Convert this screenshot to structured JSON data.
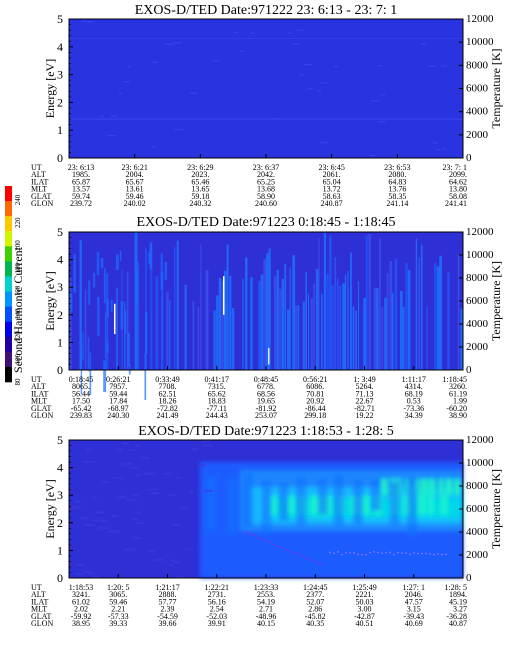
{
  "colorbar": {
    "label": "Second Harmonic Current",
    "ticks": [
      "240",
      "220",
      "200",
      "180",
      "160",
      "140",
      "120",
      "100",
      "80"
    ],
    "colors": [
      "#ff0000",
      "#ff6a00",
      "#ffc800",
      "#d2f500",
      "#3cd200",
      "#00b450",
      "#00d2d2",
      "#0096ff",
      "#0050ff",
      "#0000e6",
      "#2000a0",
      "#40107a",
      "#000000"
    ]
  },
  "chart_data": [
    {
      "type": "heatmap",
      "title": "EXOS-D/TED   Date:971222  23: 6:13 - 23: 7: 1",
      "ylabel": "Energy [eV]",
      "y2label": "Temperature [K]",
      "ylim": [
        0,
        5
      ],
      "y2lim": [
        0,
        12000
      ],
      "yticks": [
        "0",
        "1",
        "2",
        "3",
        "4",
        "5"
      ],
      "y2ticks": [
        "0",
        "2000",
        "4000",
        "6000",
        "8000",
        "10000",
        "12000"
      ],
      "ephemeris": [
        {
          "label": "UT",
          "values": [
            "23: 6:13",
            "23: 6:21",
            "23: 6:29",
            "23: 6:37",
            "23: 6:45",
            "23: 6:53",
            "23: 7: 1"
          ]
        },
        {
          "label": "ALT",
          "values": [
            "1985.",
            "2004.",
            "2023.",
            "2042.",
            "2061.",
            "2080.",
            "2099."
          ]
        },
        {
          "label": "ILAT",
          "values": [
            "65.87",
            "65.67",
            "65.46",
            "65.25",
            "65.04",
            "64.83",
            "64.62"
          ]
        },
        {
          "label": "MLT",
          "values": [
            "13.57",
            "13.61",
            "13.65",
            "13.68",
            "13.72",
            "13.76",
            "13.80"
          ]
        },
        {
          "label": "GLAT",
          "values": [
            "59.74",
            "59.46",
            "59.18",
            "58.90",
            "58.63",
            "58.35",
            "58.08"
          ]
        },
        {
          "label": "GLON",
          "values": [
            "239.72",
            "240.02",
            "240.32",
            "240.60",
            "240.87",
            "241.14",
            "241.41"
          ]
        }
      ]
    },
    {
      "type": "heatmap",
      "title": "EXOS-D/TED   Date:971223  0:18:45 - 1:18:45",
      "ylabel": "Energy [eV]",
      "y2label": "Temperature [K]",
      "ylim": [
        0,
        5
      ],
      "y2lim": [
        0,
        12000
      ],
      "yticks": [
        "0",
        "1",
        "2",
        "3",
        "4",
        "5"
      ],
      "y2ticks": [
        "0",
        "2000",
        "4000",
        "6000",
        "8000",
        "10000",
        "12000"
      ],
      "ephemeris": [
        {
          "label": "UT",
          "values": [
            "0:18:45",
            "0:26:21",
            "0:33:49",
            "0:41:17",
            "0:48:45",
            "0:56:21",
            "1: 3:49",
            "1:11:17",
            "1:18:45"
          ]
        },
        {
          "label": "ALT",
          "values": [
            "8065.",
            "7957.",
            "7708.",
            "7315.",
            "6778.",
            "6086.",
            "5264.",
            "4314.",
            "3260."
          ]
        },
        {
          "label": "ILAT",
          "values": [
            "56.44",
            "59.44",
            "62.51",
            "65.62",
            "68.56",
            "70.81",
            "71.13",
            "68.19",
            "61.19"
          ]
        },
        {
          "label": "MLT",
          "values": [
            "17.50",
            "17.84",
            "18.26",
            "18.83",
            "19.65",
            "20.92",
            "22.67",
            "0.53",
            "1.99"
          ]
        },
        {
          "label": "GLAT",
          "values": [
            "-65.42",
            "-68.97",
            "-72.82",
            "-77.11",
            "-81.92",
            "-86.44",
            "-82.71",
            "-73.36",
            "-60.20"
          ]
        },
        {
          "label": "GLON",
          "values": [
            "239.83",
            "240.30",
            "241.49",
            "244.43",
            "253.07",
            "299.18",
            "19.22",
            "34.39",
            "38.90"
          ]
        }
      ]
    },
    {
      "type": "heatmap",
      "title": "EXOS-D/TED   Date:971223  1:18:53 - 1:28: 5",
      "ylabel": "Energy [eV]",
      "y2label": "Temperature [K]",
      "ylim": [
        0,
        5
      ],
      "y2lim": [
        0,
        12000
      ],
      "yticks": [
        "0",
        "1",
        "2",
        "3",
        "4",
        "5"
      ],
      "y2ticks": [
        "0",
        "2000",
        "4000",
        "6000",
        "8000",
        "10000",
        "12000"
      ],
      "ephemeris": [
        {
          "label": "UT",
          "values": [
            "1:18:53",
            "1:20: 5",
            "1:21:17",
            "1:22:21",
            "1:23:33",
            "1:24:45",
            "1:25:49",
            "1:27: 1",
            "1:28: 5"
          ]
        },
        {
          "label": "ALT",
          "values": [
            "3241.",
            "3065.",
            "2888.",
            "2731.",
            "2553.",
            "2377.",
            "2221.",
            "2046.",
            "1894."
          ]
        },
        {
          "label": "ILAT",
          "values": [
            "61.02",
            "59.46",
            "57.77",
            "56.16",
            "54.19",
            "52.07",
            "50.03",
            "47.57",
            "45.19"
          ]
        },
        {
          "label": "MLT",
          "values": [
            "2.02",
            "2.21",
            "2.39",
            "2.54",
            "2.71",
            "2.86",
            "3.00",
            "3.15",
            "3.27"
          ]
        },
        {
          "label": "GLAT",
          "values": [
            "-59.92",
            "-57.33",
            "-54.59",
            "-52.03",
            "-48.96",
            "-45.82",
            "-42.87",
            "-39.43",
            "-36.28"
          ]
        },
        {
          "label": "GLON",
          "values": [
            "38.95",
            "39.33",
            "39.66",
            "39.91",
            "40.15",
            "40.35",
            "40.51",
            "40.69",
            "40.87"
          ]
        }
      ]
    }
  ]
}
